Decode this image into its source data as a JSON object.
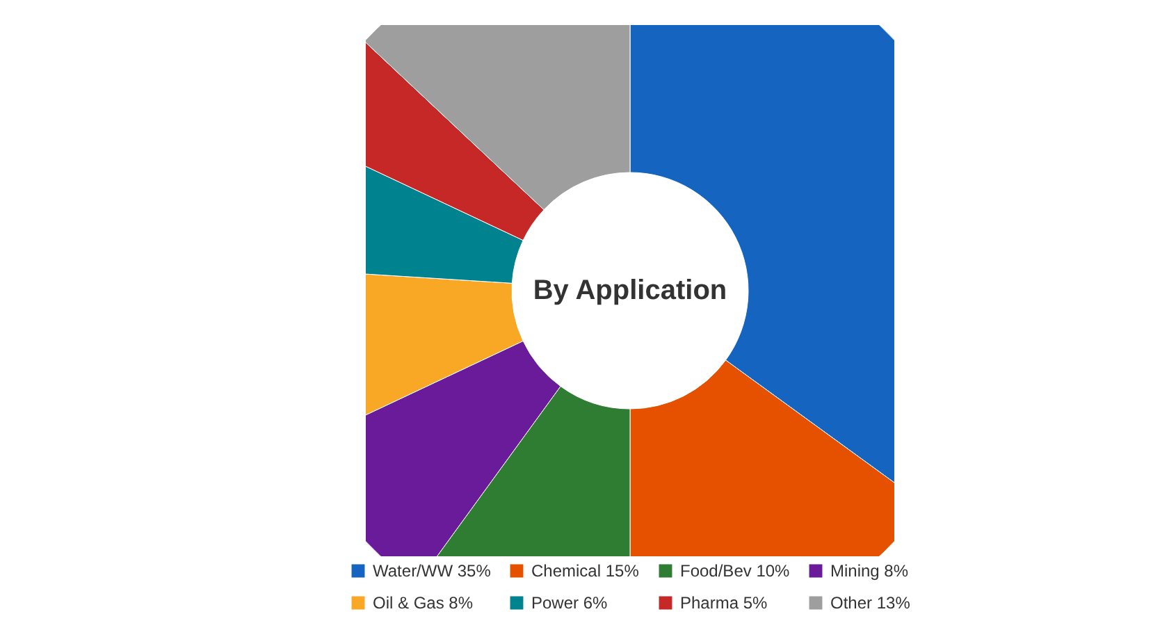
{
  "chart_data": {
    "type": "donut",
    "title": "By Application",
    "categories": [
      "Water/WW",
      "Chemical",
      "Food/Bev",
      "Mining",
      "Oil & Gas",
      "Power",
      "Pharma",
      "Other"
    ],
    "values": [
      35,
      15,
      10,
      8,
      8,
      6,
      5,
      13
    ],
    "value_labels": [
      "35%",
      "15%",
      "10%",
      "8%",
      "8%",
      "6%",
      "5%",
      "13%"
    ],
    "colors": [
      "#1565c0",
      "#e65100",
      "#2e7d32",
      "#6a1b9a",
      "#f9a825",
      "#00838f",
      "#c62828",
      "#9e9e9e"
    ],
    "legend": "bottom"
  }
}
